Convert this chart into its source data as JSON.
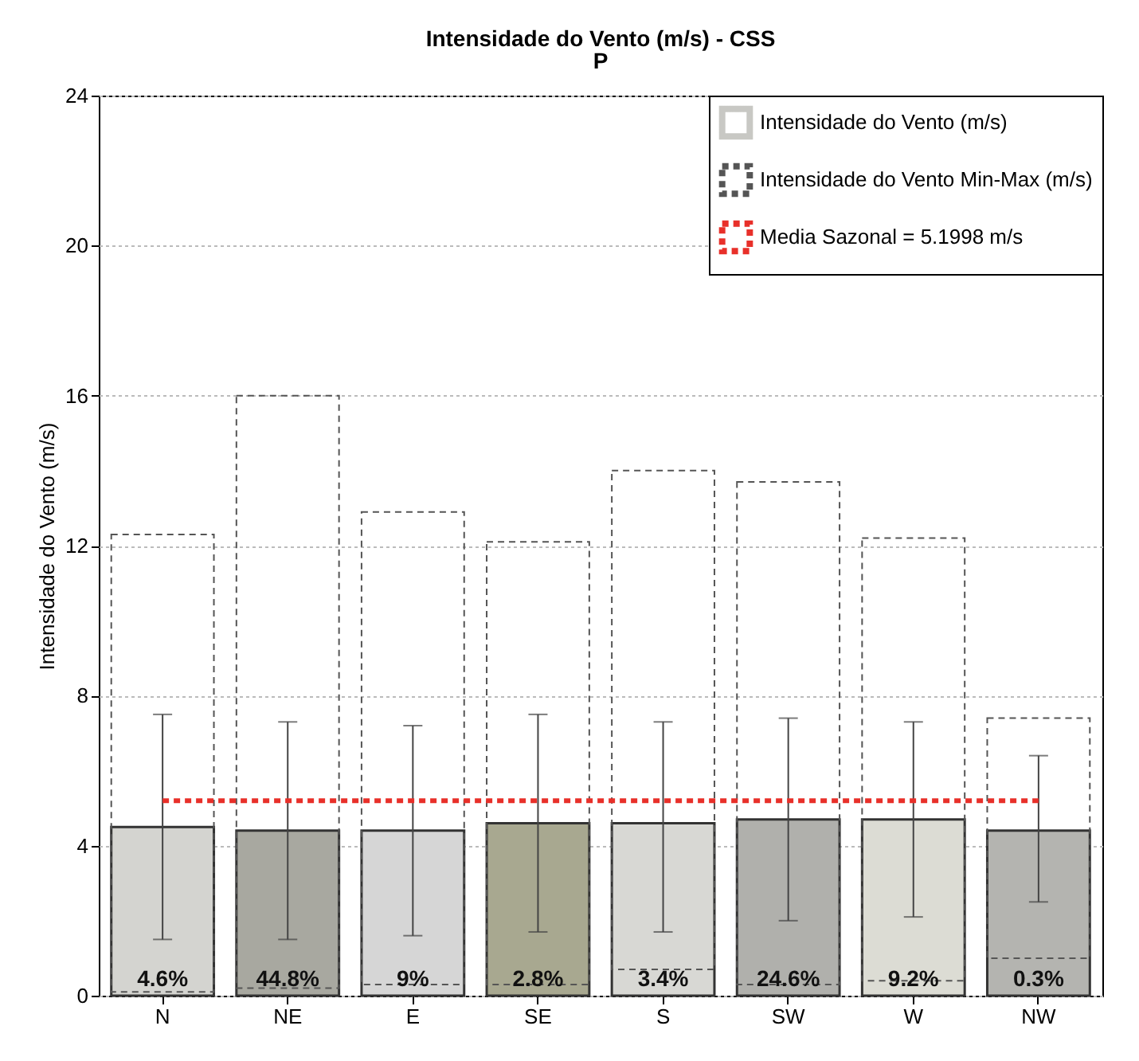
{
  "chart_data": {
    "type": "bar",
    "title": "Intensidade do Vento (m/s) - CSS",
    "subtitle": "P",
    "ylabel": "Intensidade do Vento (m/s)",
    "categories": [
      "N",
      "NE",
      "E",
      "SE",
      "S",
      "SW",
      "W",
      "NW"
    ],
    "series": [
      {
        "name": "Intensidade do Vento (m/s)",
        "color": "#c8c8c4",
        "colors": [
          "#d4d4d0",
          "#a8a8a0",
          "#d6d6d6",
          "#a8a890",
          "#d8d8d4",
          "#b0b0ac",
          "#dcdcd4",
          "#b4b4b0"
        ],
        "values": [
          4.5,
          4.4,
          4.4,
          4.6,
          4.6,
          4.7,
          4.7,
          4.4
        ],
        "errors": [
          [
            1.5,
            7.5
          ],
          [
            1.5,
            7.3
          ],
          [
            1.6,
            7.2
          ],
          [
            1.7,
            7.5
          ],
          [
            1.7,
            7.3
          ],
          [
            2.0,
            7.4
          ],
          [
            2.1,
            7.3
          ],
          [
            2.5,
            6.4
          ]
        ]
      },
      {
        "name": "Intensidade do Vento Min-Max (m/s)",
        "color": "#555555",
        "line_style": "dashed",
        "base": [
          0.1,
          0.2,
          0.3,
          0.3,
          0.7,
          0.3,
          0.4,
          1.0
        ],
        "values": [
          12.2,
          15.8,
          12.6,
          11.8,
          13.3,
          13.4,
          11.8,
          6.4
        ]
      }
    ],
    "ref_lines": [
      {
        "axis": "y",
        "value": 5.1998,
        "label": "Media Sazonal = 5.1998 m/s",
        "color": "#e8302a",
        "line_style": "dashed"
      }
    ],
    "annotations": [
      "4.6%",
      "44.8%",
      "9%",
      "2.8%",
      "3.4%",
      "24.6%",
      "9.2%",
      "0.3%"
    ],
    "ylim": [
      0,
      24
    ],
    "yticks": [
      0,
      4,
      8,
      12,
      16,
      20,
      24
    ],
    "grid": "y",
    "legend": "top right"
  }
}
